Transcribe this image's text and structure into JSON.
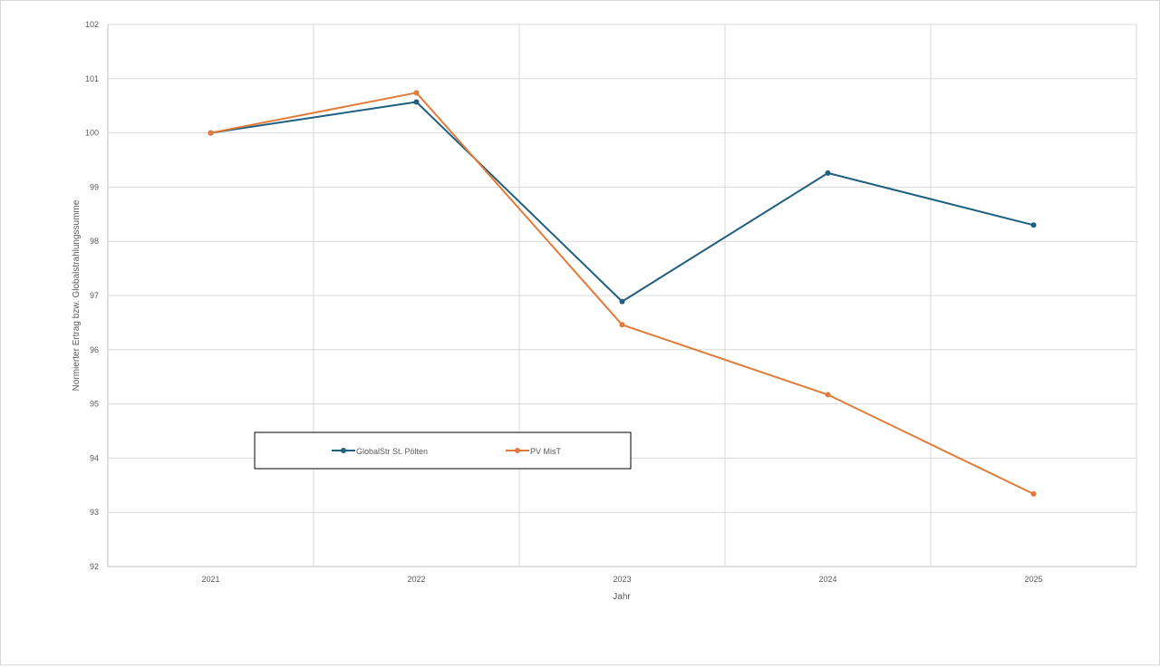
{
  "chart_data": {
    "type": "line",
    "title": "",
    "xlabel": "Jahr",
    "ylabel": "Normierter Ertrag bzw. Globalstrahlungssumme",
    "categories": [
      "2021",
      "2022",
      "2023",
      "2024",
      "2025"
    ],
    "ylim": [
      92,
      102
    ],
    "yticks": [
      92,
      93,
      94,
      95,
      96,
      97,
      98,
      99,
      100,
      101,
      102
    ],
    "grid": true,
    "legend_position": "lower-left inside plot",
    "series": [
      {
        "name": "GlobalStr St. Pölten",
        "color": "#1f5f7f",
        "values": [
          100.0,
          100.57,
          96.89,
          99.26,
          98.3
        ]
      },
      {
        "name": "PV MisT",
        "color": "#e07b39",
        "values": [
          100.0,
          100.74,
          96.46,
          95.17,
          93.34
        ]
      }
    ]
  }
}
